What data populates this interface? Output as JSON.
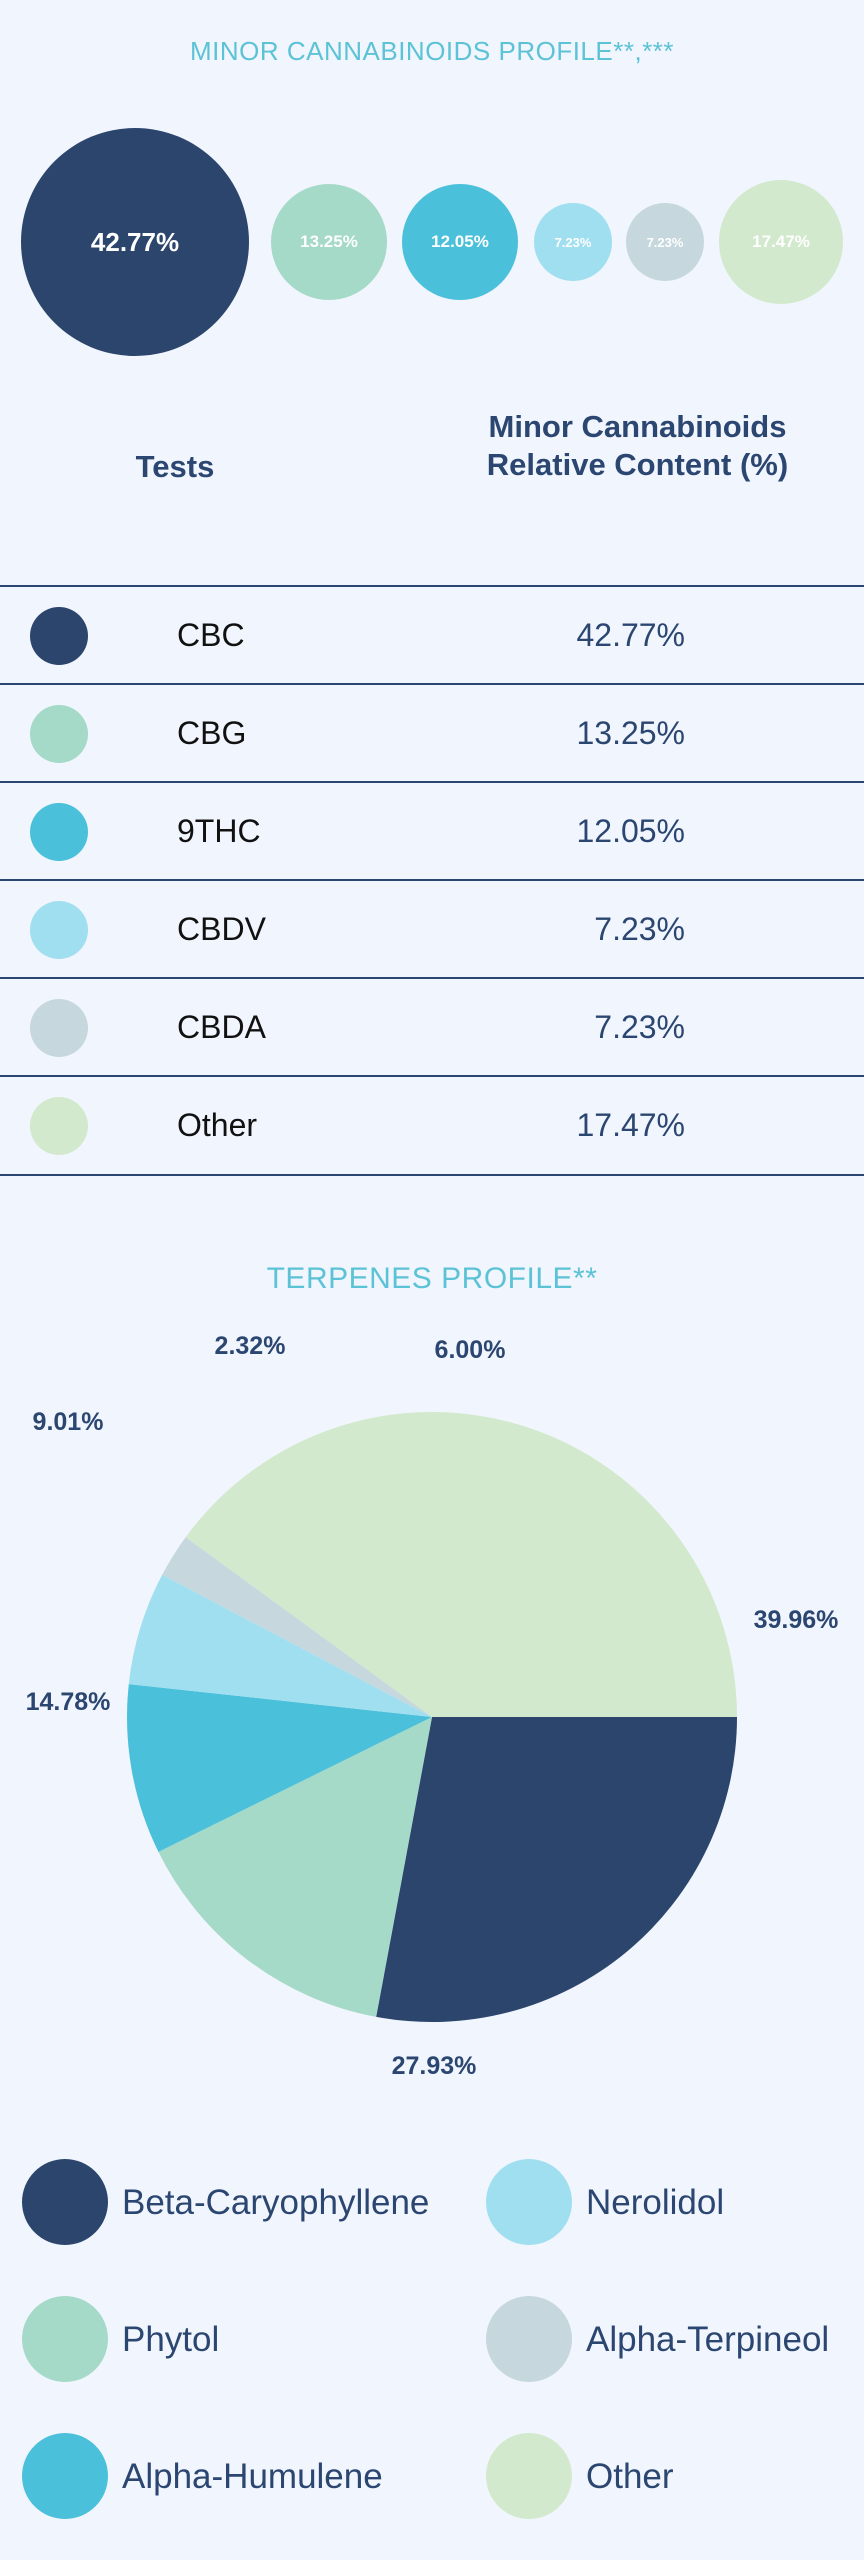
{
  "cannabinoids": {
    "title": "MINOR CANNABINOIDS PROFILE**,***",
    "col_tests": "Tests",
    "col_content": "Minor Cannabinoids Relative Content (%)",
    "rows": [
      {
        "name": "CBC",
        "value": "42.77%",
        "color": "#2c456d"
      },
      {
        "name": "CBG",
        "value": "13.25%",
        "color": "#a5d9c8"
      },
      {
        "name": "9THC",
        "value": "12.05%",
        "color": "#4bc0da"
      },
      {
        "name": "CBDV",
        "value": "7.23%",
        "color": "#a0dff0"
      },
      {
        "name": "CBDA",
        "value": "7.23%",
        "color": "#c6d8de"
      },
      {
        "name": "Other",
        "value": "17.47%",
        "color": "#d2e9cd"
      }
    ]
  },
  "terpenes": {
    "title": "TERPENES PROFILE**"
  },
  "chart_data": [
    {
      "type": "bubble",
      "title": "MINOR CANNABINOIDS PROFILE**,***",
      "categories": [
        "CBC",
        "CBG",
        "9THC",
        "CBDV",
        "CBDA",
        "Other"
      ],
      "values": [
        42.77,
        13.25,
        12.05,
        7.23,
        7.23,
        17.47
      ],
      "labels": [
        "42.77%",
        "13.25%",
        "12.05%",
        "7.23%",
        "7.23%",
        "17.47%"
      ],
      "colors": [
        "#2c456d",
        "#a5d9c8",
        "#4bc0da",
        "#a0dff0",
        "#c6d8de",
        "#d2e9cd"
      ]
    },
    {
      "type": "pie",
      "title": "TERPENES PROFILE**",
      "categories": [
        "Beta-Caryophyllene",
        "Phytol",
        "Alpha-Humulene",
        "Nerolidol",
        "Alpha-Terpineol",
        "Other"
      ],
      "values": [
        27.93,
        14.78,
        9.01,
        6.0,
        2.32,
        39.96
      ],
      "labels": [
        "27.93%",
        "14.78%",
        "9.01%",
        "6.00%",
        "2.32%",
        "39.96%"
      ],
      "colors": [
        "#2c456d",
        "#a5d9c8",
        "#4bc0da",
        "#a0dff0",
        "#c6d8de",
        "#d2e9cd"
      ],
      "legend": "bottom"
    }
  ]
}
